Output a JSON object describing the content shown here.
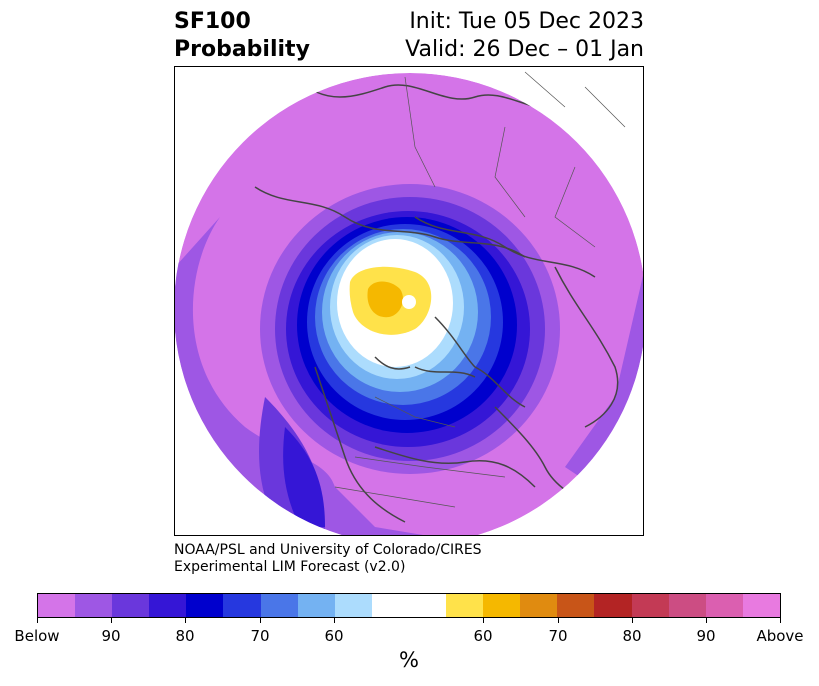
{
  "header": {
    "title_line1": "SF100",
    "title_line2": "Probability",
    "init_text": "Init: Tue 05 Dec 2023",
    "valid_text": "Valid: 26 Dec – 01 Jan"
  },
  "credit": {
    "line1": "NOAA/PSL and University of Colorado/CIRES",
    "line2": "Experimental LIM Forecast (v2.0)"
  },
  "colorbar": {
    "colors": [
      "#d474e8",
      "#9e57e4",
      "#6a37dc",
      "#3516d6",
      "#0000cd",
      "#2638df",
      "#4a76e8",
      "#74b2f2",
      "#acdcfd",
      "#ffffff",
      "#ffe24a",
      "#f5b800",
      "#e08b10",
      "#c85518",
      "#b32424",
      "#c33a55",
      "#cc4d83",
      "#db5fb0",
      "#e87ae0"
    ],
    "tick_labels": [
      "Below",
      "90",
      "80",
      "70",
      "60",
      "60",
      "70",
      "80",
      "90",
      "Above"
    ],
    "unit_label": "%"
  },
  "map": {
    "projection": "north-polar-stereographic",
    "fill_colors": {
      "outer": "#d474e8",
      "band1": "#9e57e4",
      "band2": "#6a37dc",
      "band3": "#3516d6",
      "band4": "#0000cd",
      "band5": "#2638df",
      "band6": "#4a76e8",
      "band7": "#74b2f2",
      "band8": "#acdcfd",
      "center": "#ffffff",
      "above1": "#ffe24a",
      "above2": "#f5b800"
    },
    "coastline_color": "#444444"
  }
}
